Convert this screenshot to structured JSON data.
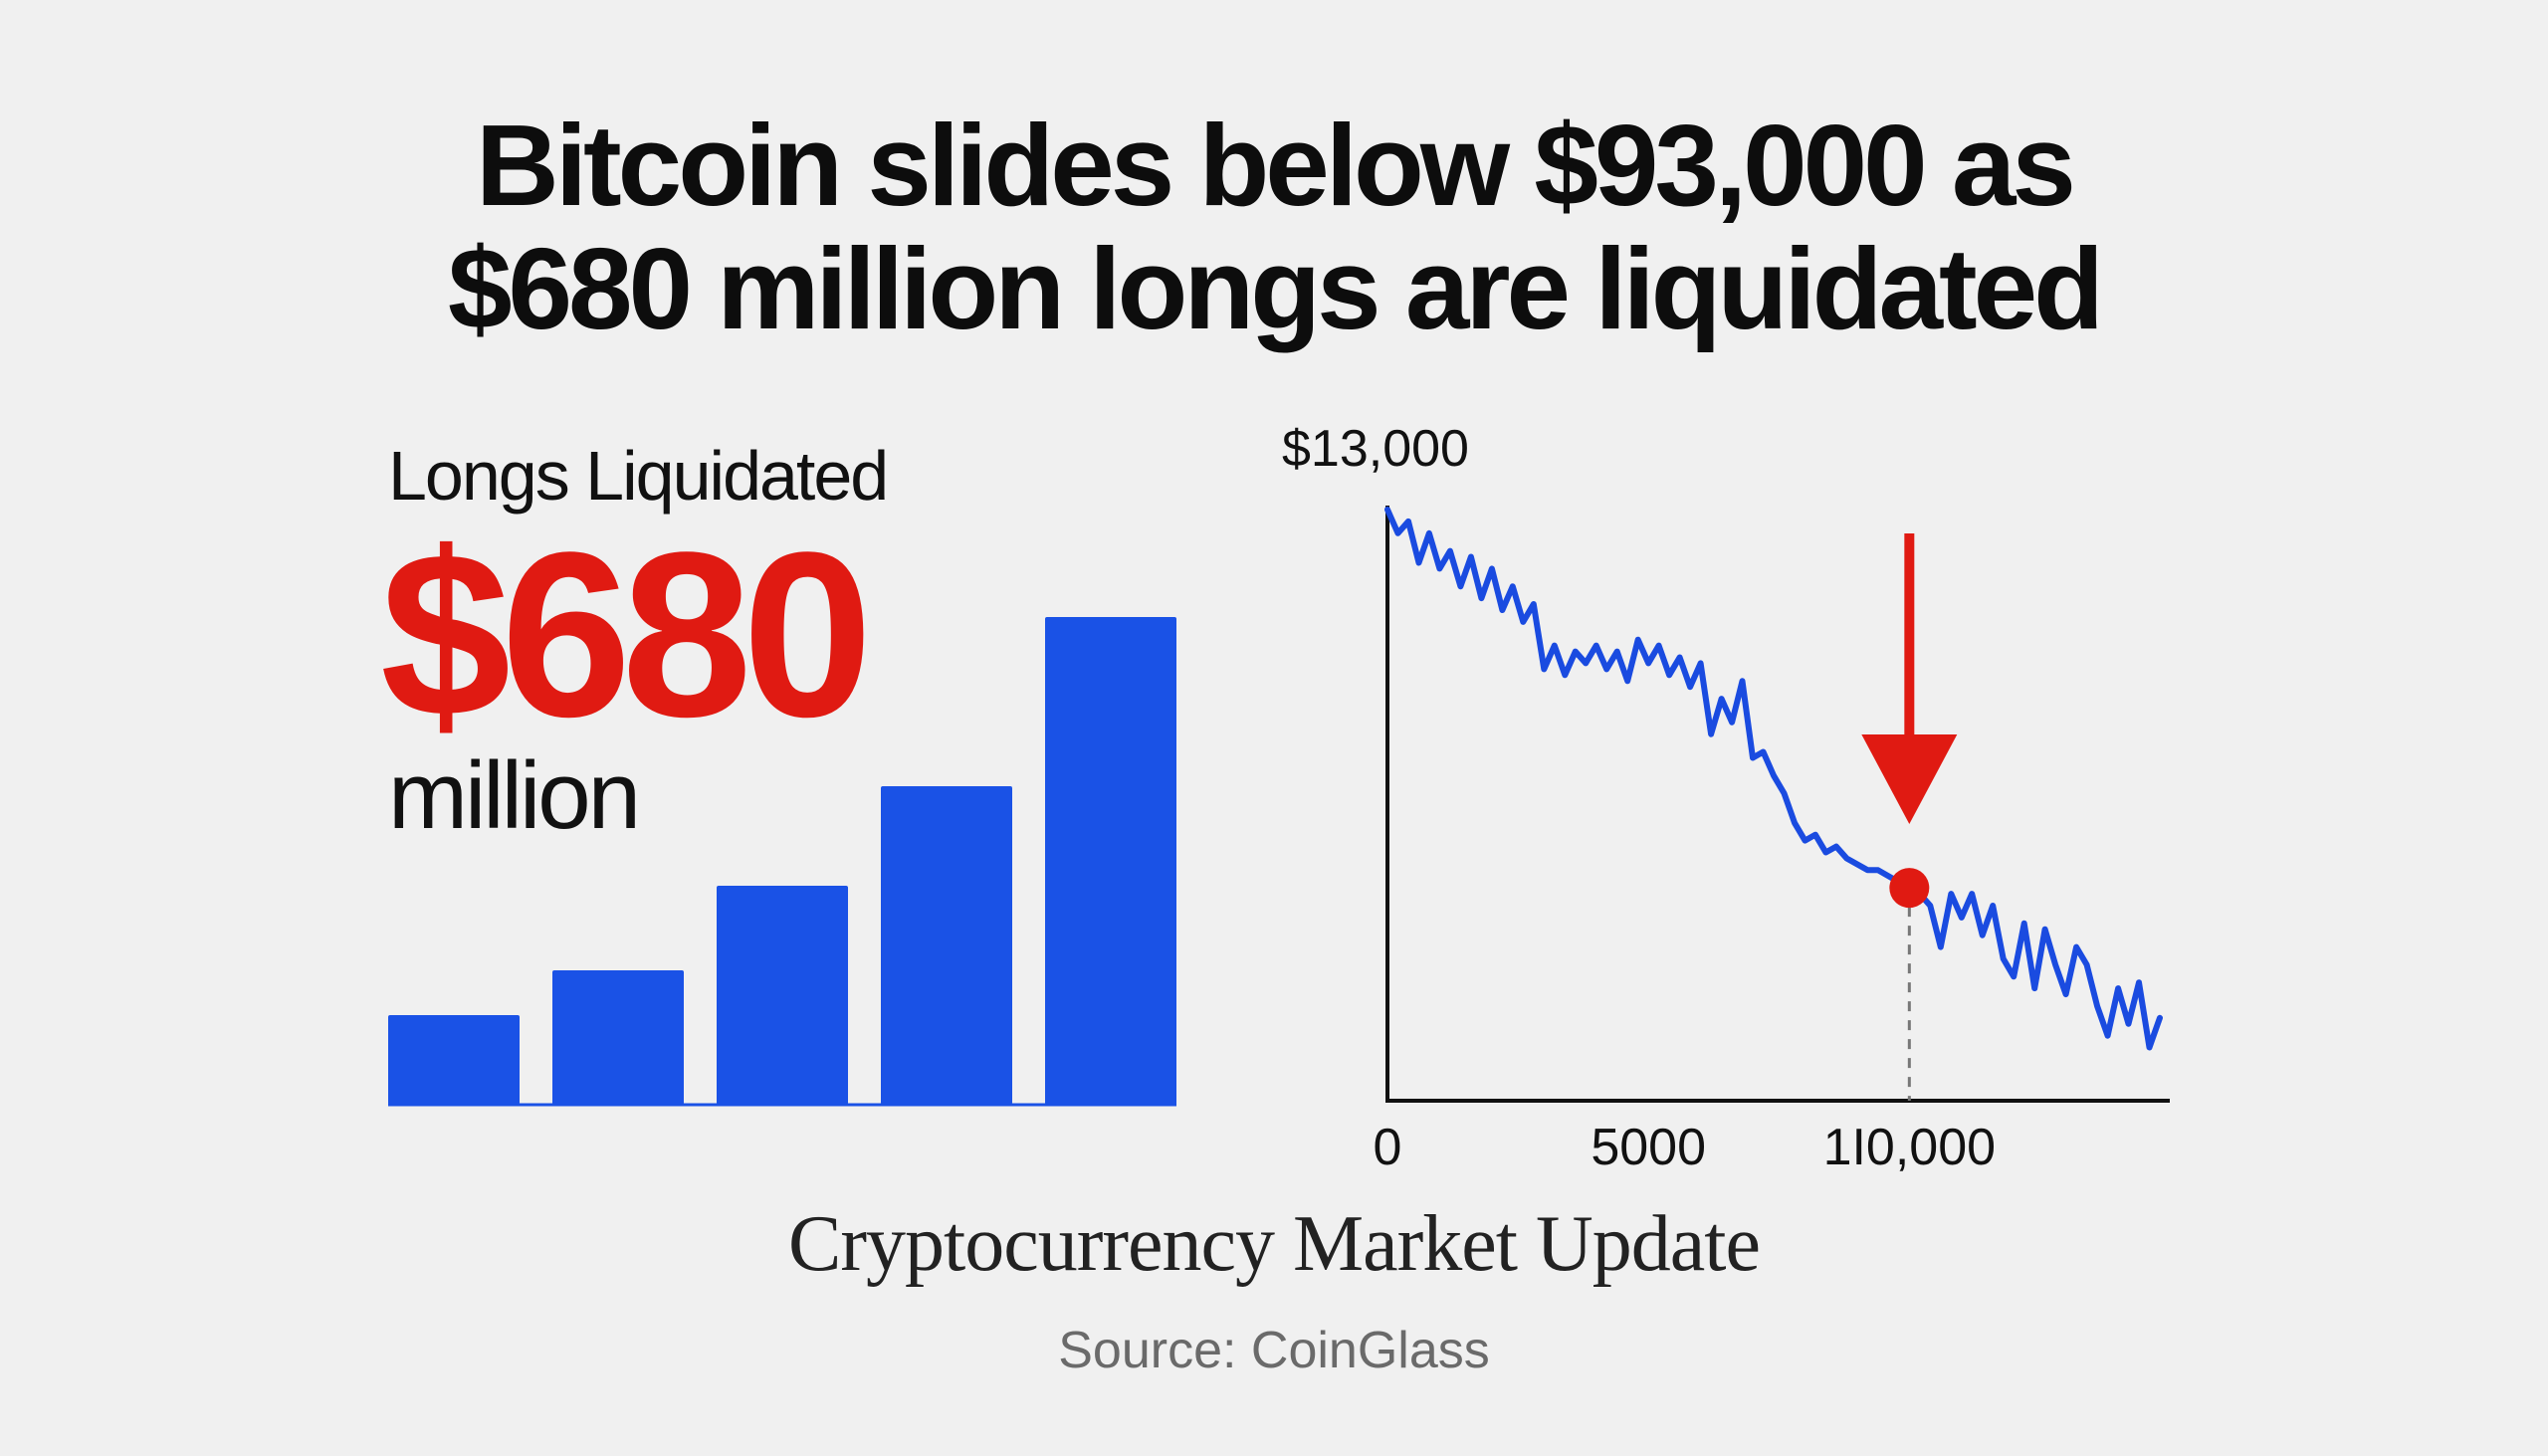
{
  "headline": {
    "line1": "Bitcoin slides below $93,000 as",
    "line2": "$680 million longs are liquidated"
  },
  "stat": {
    "label": "Longs Liquidated",
    "value": "$680",
    "unit": "million"
  },
  "caption": "Cryptocurrency Market Update",
  "source": "Source: CoinGlass",
  "colors": {
    "accent_red": "#e01a12",
    "series_blue": "#1a4be0",
    "bar_blue": "#1a52e6",
    "axis": "#111111",
    "background": "#f0f0f0"
  },
  "chart_data": [
    {
      "type": "bar",
      "categories": [
        "",
        "",
        "",
        "",
        ""
      ],
      "values": [
        18,
        27,
        44,
        64,
        98
      ],
      "ylim": [
        0,
        100
      ],
      "title": "",
      "xlabel": "",
      "ylabel": "",
      "grid": false
    },
    {
      "type": "line",
      "title": "",
      "xlabel": "",
      "ylabel": "",
      "grid": false,
      "y_top_label": "$13,000",
      "x_tick_labels": [
        {
          "value": 0,
          "label": "0"
        },
        {
          "value": 5000,
          "label": "5000"
        },
        {
          "value": 10000,
          "label": "1I0,000"
        }
      ],
      "xlim": [
        0,
        14800
      ],
      "ylim": [
        0,
        100
      ],
      "highlight_x": 10000,
      "series": [
        {
          "x": [
            0,
            200,
            400,
            600,
            800,
            1000,
            1200,
            1400,
            1600,
            1800,
            2000,
            2200,
            2400,
            2600,
            2800,
            3000,
            3200,
            3400,
            3600,
            3800,
            4000,
            4200,
            4400,
            4600,
            4800,
            5000,
            5200,
            5400,
            5600,
            5800,
            6000,
            6200,
            6400,
            6600,
            6800,
            7000,
            7200,
            7400,
            7600,
            7800,
            8000,
            8200,
            8400,
            8600,
            8800,
            9000,
            9200,
            9400,
            9600,
            9800,
            10000,
            10200,
            10400,
            10600,
            10800,
            11000,
            11200,
            11400,
            11600,
            11800,
            12000,
            12200,
            12400,
            12600,
            12800,
            13000,
            13200,
            13400,
            13600,
            13800,
            14000,
            14200,
            14400,
            14600,
            14800
          ],
          "values": [
            100,
            96,
            98,
            91,
            96,
            90,
            93,
            87,
            92,
            85,
            90,
            83,
            87,
            81,
            84,
            73,
            77,
            72,
            76,
            74,
            77,
            73,
            76,
            71,
            78,
            74,
            77,
            72,
            75,
            70,
            74,
            62,
            68,
            64,
            71,
            58,
            59,
            55,
            52,
            47,
            44,
            45,
            42,
            43,
            41,
            40,
            39,
            39,
            38,
            37,
            36,
            35,
            33,
            26,
            35,
            31,
            35,
            28,
            33,
            24,
            21,
            30,
            19,
            29,
            23,
            18,
            26,
            23,
            16,
            11,
            19,
            13,
            20,
            9,
            14
          ],
          "highlight": {
            "x": 10000,
            "y": 36
          }
        }
      ]
    }
  ]
}
